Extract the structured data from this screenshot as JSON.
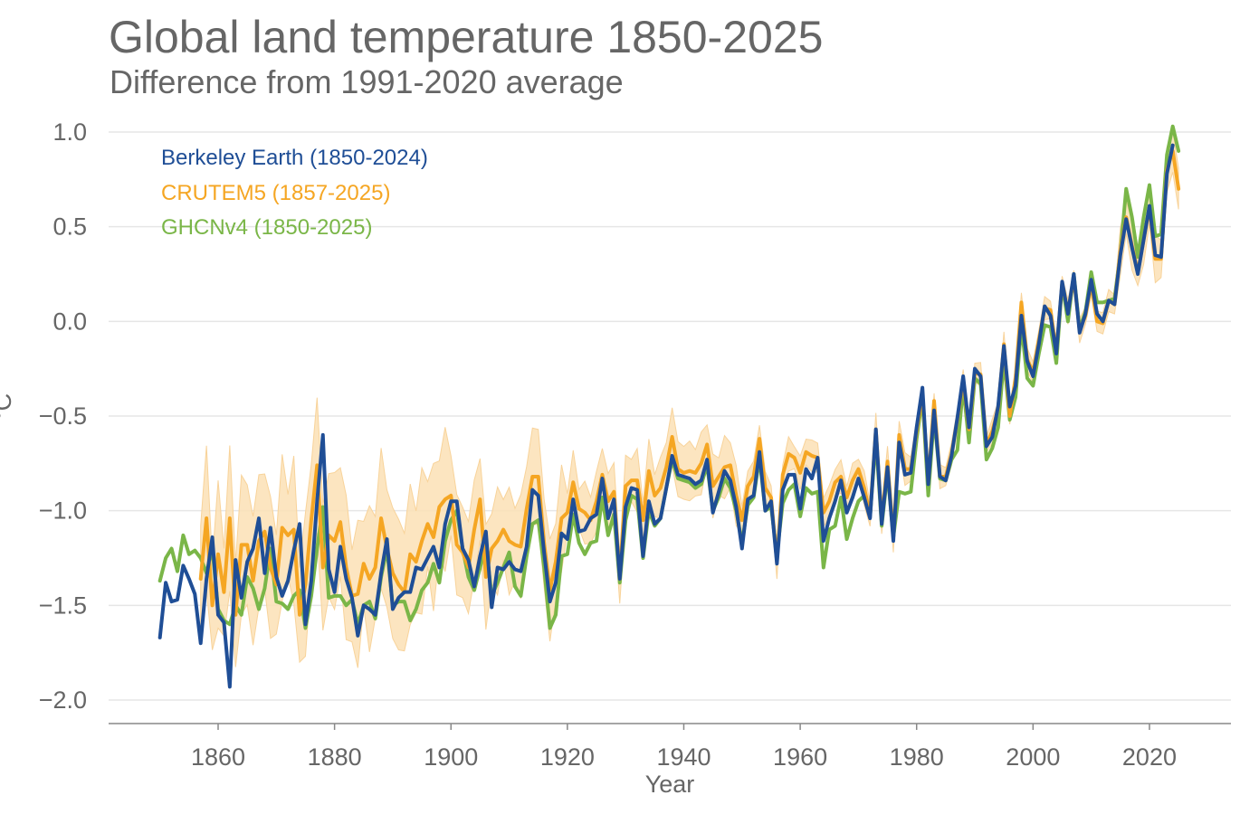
{
  "chart_data": {
    "type": "line",
    "title": "Global land temperature 1850-2025",
    "subtitle": "Difference from 1991-2020 average",
    "xlabel": "Year",
    "ylabel": "°C",
    "xlim": [
      1841,
      2033
    ],
    "ylim": [
      -2.1,
      1.0
    ],
    "xticks": [
      1860,
      1880,
      1900,
      1920,
      1940,
      1960,
      1980,
      2000,
      2020
    ],
    "yticks": [
      1.0,
      0.5,
      0.0,
      -0.5,
      -1.0,
      -1.5,
      -2.0
    ],
    "ytick_labels": [
      "1.0",
      "0.5",
      "0.0",
      "−0.5",
      "−1.0",
      "−1.5",
      "−2.0"
    ],
    "grid": true,
    "legend_position": "top-left",
    "colors": {
      "berkeley": "#1f4e96",
      "crutem": "#f5a623",
      "ghcn": "#7ab648",
      "band": "#fbe0b5"
    },
    "series": [
      {
        "name": "Berkeley Earth (1850-2024)",
        "key": "berkeley",
        "start": 1850,
        "values": [
          -1.67,
          -1.38,
          -1.48,
          -1.47,
          -1.29,
          -1.36,
          -1.44,
          -1.7,
          -1.36,
          -1.14,
          -1.55,
          -1.59,
          -1.93,
          -1.26,
          -1.46,
          -1.27,
          -1.2,
          -1.04,
          -1.33,
          -1.09,
          -1.35,
          -1.45,
          -1.37,
          -1.21,
          -1.07,
          -1.6,
          -1.37,
          -0.95,
          -0.6,
          -1.31,
          -1.43,
          -1.19,
          -1.36,
          -1.46,
          -1.66,
          -1.5,
          -1.52,
          -1.55,
          -1.33,
          -1.15,
          -1.52,
          -1.46,
          -1.43,
          -1.43,
          -1.3,
          -1.31,
          -1.25,
          -1.19,
          -1.3,
          -1.07,
          -0.95,
          -0.95,
          -1.2,
          -1.26,
          -1.4,
          -1.24,
          -1.11,
          -1.51,
          -1.3,
          -1.31,
          -1.27,
          -1.31,
          -1.32,
          -1.19,
          -0.89,
          -0.92,
          -1.22,
          -1.48,
          -1.38,
          -1.12,
          -1.15,
          -0.94,
          -1.11,
          -1.1,
          -1.04,
          -1.02,
          -0.83,
          -1.04,
          -0.94,
          -1.36,
          -0.98,
          -0.88,
          -0.89,
          -1.24,
          -0.95,
          -1.07,
          -1.04,
          -0.88,
          -0.71,
          -0.81,
          -0.82,
          -0.83,
          -0.86,
          -0.84,
          -0.73,
          -1.01,
          -0.9,
          -0.79,
          -0.84,
          -0.98,
          -1.2,
          -0.94,
          -0.92,
          -0.69,
          -1.0,
          -0.95,
          -1.28,
          -0.89,
          -0.81,
          -0.81,
          -0.99,
          -0.78,
          -0.83,
          -0.72,
          -1.16,
          -1.04,
          -0.95,
          -0.84,
          -1.01,
          -0.93,
          -0.83,
          -0.93,
          -1.04,
          -0.57,
          -1.07,
          -0.77,
          -1.16,
          -0.64,
          -0.81,
          -0.8,
          -0.56,
          -0.35,
          -0.86,
          -0.47,
          -0.82,
          -0.84,
          -0.71,
          -0.51,
          -0.29,
          -0.56,
          -0.25,
          -0.29,
          -0.66,
          -0.61,
          -0.45,
          -0.13,
          -0.45,
          -0.34,
          0.03,
          -0.21,
          -0.29,
          -0.12,
          0.08,
          0.03,
          -0.17,
          0.21,
          0.04,
          0.25,
          -0.06,
          0.04,
          0.22,
          0.04,
          0.0,
          0.11,
          0.09,
          0.35,
          0.54,
          0.39,
          0.25,
          0.43,
          0.61,
          0.35,
          0.34,
          0.78,
          0.93
        ]
      },
      {
        "name": "CRUTEM5 (1857-2025)",
        "key": "crutem",
        "start": 1857,
        "values": [
          -1.36,
          -1.04,
          -1.5,
          -1.23,
          -1.43,
          -1.04,
          -1.55,
          -1.18,
          -1.18,
          -1.37,
          -1.16,
          -1.11,
          -1.3,
          -1.39,
          -1.09,
          -1.13,
          -1.1,
          -1.55,
          -1.39,
          -1.05,
          -0.76,
          -1.3,
          -1.13,
          -1.16,
          -1.06,
          -1.3,
          -1.45,
          -1.44,
          -1.28,
          -1.36,
          -1.3,
          -1.04,
          -1.2,
          -1.33,
          -1.39,
          -1.43,
          -1.23,
          -1.27,
          -1.16,
          -1.07,
          -1.14,
          -0.98,
          -0.94,
          -0.92,
          -1.18,
          -1.22,
          -1.3,
          -1.1,
          -0.94,
          -1.35,
          -1.2,
          -1.16,
          -1.1,
          -1.16,
          -1.18,
          -1.19,
          -0.99,
          -0.82,
          -0.82,
          -1.17,
          -1.42,
          -1.27,
          -1.04,
          -1.01,
          -0.85,
          -0.99,
          -1.01,
          -1.05,
          -0.95,
          -0.81,
          -0.95,
          -0.9,
          -1.36,
          -0.87,
          -0.84,
          -0.84,
          -1.05,
          -0.79,
          -0.92,
          -0.88,
          -0.77,
          -0.61,
          -0.78,
          -0.8,
          -0.79,
          -0.8,
          -0.75,
          -0.65,
          -0.87,
          -0.82,
          -0.77,
          -0.76,
          -0.92,
          -1.05,
          -0.87,
          -0.82,
          -0.62,
          -0.88,
          -0.93,
          -1.27,
          -0.81,
          -0.7,
          -0.72,
          -0.8,
          -0.69,
          -0.71,
          -0.72,
          -1.01,
          -0.95,
          -0.85,
          -0.82,
          -0.93,
          -0.84,
          -0.78,
          -0.88,
          -1.02,
          -0.57,
          -1.05,
          -0.74,
          -1.14,
          -0.6,
          -0.78,
          -0.78,
          -0.58,
          -0.38,
          -0.85,
          -0.42,
          -0.82,
          -0.82,
          -0.7,
          -0.52,
          -0.31,
          -0.57,
          -0.27,
          -0.28,
          -0.65,
          -0.58,
          -0.46,
          -0.12,
          -0.5,
          -0.3,
          0.1,
          -0.2,
          -0.27,
          -0.1,
          0.07,
          0.06,
          -0.16,
          0.2,
          0.05,
          0.23,
          -0.05,
          0.03,
          0.2,
          0.0,
          -0.01,
          0.11,
          0.09,
          0.37,
          0.55,
          0.4,
          0.26,
          0.43,
          0.6,
          0.33,
          0.33,
          0.8,
          0.9,
          0.7
        ]
      },
      {
        "name": "GHCNv4 (1850-2025)",
        "key": "ghcn",
        "start": 1850,
        "values": [
          -1.37,
          -1.25,
          -1.2,
          -1.32,
          -1.13,
          -1.23,
          -1.21,
          -1.25,
          -1.33,
          -1.2,
          -1.52,
          -1.58,
          -1.6,
          -1.5,
          -1.55,
          -1.35,
          -1.41,
          -1.52,
          -1.41,
          -1.2,
          -1.48,
          -1.49,
          -1.52,
          -1.45,
          -1.42,
          -1.62,
          -1.45,
          -1.2,
          -0.98,
          -1.46,
          -1.45,
          -1.45,
          -1.5,
          -1.47,
          -1.6,
          -1.5,
          -1.48,
          -1.57,
          -1.35,
          -1.2,
          -1.5,
          -1.48,
          -1.48,
          -1.58,
          -1.52,
          -1.42,
          -1.38,
          -1.28,
          -1.38,
          -1.16,
          -1.05,
          -1.0,
          -1.2,
          -1.35,
          -1.42,
          -1.3,
          -1.18,
          -1.45,
          -1.38,
          -1.3,
          -1.22,
          -1.4,
          -1.45,
          -1.24,
          -1.07,
          -1.05,
          -1.3,
          -1.62,
          -1.55,
          -1.24,
          -1.23,
          -1.02,
          -1.17,
          -1.23,
          -1.17,
          -1.16,
          -0.93,
          -1.13,
          -1.02,
          -1.38,
          -1.05,
          -0.92,
          -0.94,
          -1.25,
          -1.0,
          -1.08,
          -1.04,
          -0.88,
          -0.73,
          -0.83,
          -0.84,
          -0.85,
          -0.88,
          -0.86,
          -0.76,
          -1.0,
          -0.93,
          -0.83,
          -0.88,
          -1.0,
          -1.17,
          -0.97,
          -0.93,
          -0.72,
          -1.0,
          -0.98,
          -1.23,
          -0.96,
          -0.89,
          -0.86,
          -1.03,
          -0.88,
          -0.91,
          -0.9,
          -1.3,
          -1.1,
          -1.08,
          -0.93,
          -1.15,
          -1.04,
          -0.95,
          -0.92,
          -1.03,
          -0.62,
          -1.08,
          -0.8,
          -1.14,
          -0.9,
          -0.91,
          -0.9,
          -0.62,
          -0.4,
          -0.92,
          -0.5,
          -0.83,
          -0.84,
          -0.73,
          -0.68,
          -0.34,
          -0.64,
          -0.3,
          -0.33,
          -0.73,
          -0.67,
          -0.56,
          -0.2,
          -0.52,
          -0.4,
          -0.02,
          -0.3,
          -0.34,
          -0.17,
          -0.02,
          -0.03,
          -0.22,
          0.2,
          0.0,
          0.25,
          -0.04,
          0.05,
          0.26,
          0.1,
          0.1,
          0.11,
          0.12,
          0.36,
          0.7,
          0.55,
          0.34,
          0.55,
          0.72,
          0.45,
          0.46,
          0.88,
          1.03,
          0.9
        ]
      }
    ],
    "crutem_uncertainty_halfwidth": [
      [
        1857,
        1899,
        0.3
      ],
      [
        1900,
        1919,
        0.22
      ],
      [
        1920,
        1949,
        0.13
      ],
      [
        1950,
        1979,
        0.07
      ],
      [
        1980,
        2014,
        0.05
      ],
      [
        2015,
        2025,
        0.1
      ]
    ]
  }
}
